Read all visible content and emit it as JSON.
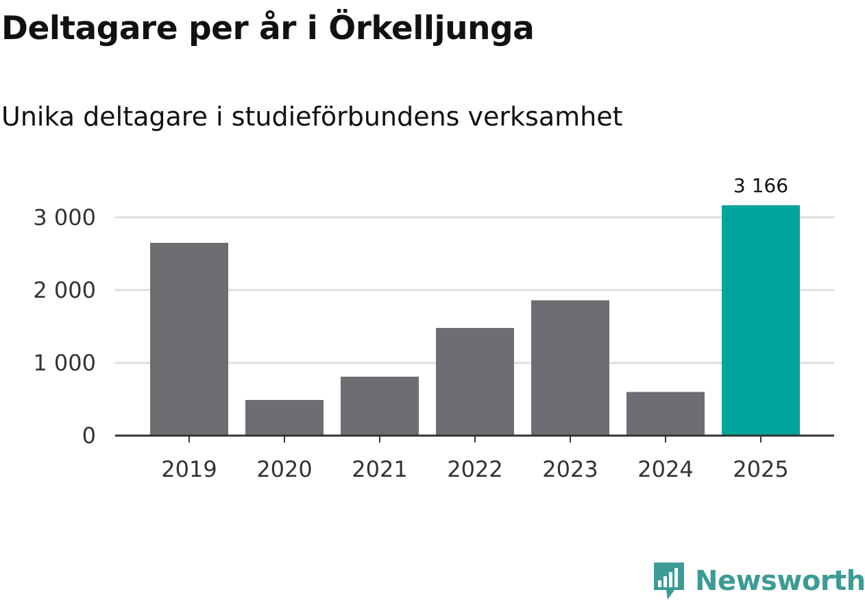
{
  "title": "Deltagare per år i Örkelljunga",
  "subtitle": "Unika deltagare i studieförbundens verksamhet",
  "brand": "Newsworthy",
  "colors": {
    "bar": "#6e6d72",
    "highlight": "#00a49a",
    "grid": "#dddddd",
    "axis": "#333333",
    "brand": "#3c9c95"
  },
  "chart_data": {
    "type": "bar",
    "title": "Deltagare per år i Örkelljunga",
    "subtitle": "Unika deltagare i studieförbundens verksamhet",
    "categories": [
      "2019",
      "2020",
      "2021",
      "2022",
      "2023",
      "2024",
      "2025"
    ],
    "values": [
      2650,
      490,
      810,
      1480,
      1860,
      600,
      3166
    ],
    "highlight_index": 6,
    "data_labels": [
      {
        "index": 6,
        "text": "3 166"
      }
    ],
    "xlabel": "",
    "ylabel": "",
    "ylim": [
      0,
      3000
    ],
    "yticks": [
      0,
      1000,
      2000,
      3000
    ],
    "ytick_labels": [
      "0",
      "1 000",
      "2 000",
      "3 000"
    ],
    "grid": true,
    "legend": "none"
  }
}
